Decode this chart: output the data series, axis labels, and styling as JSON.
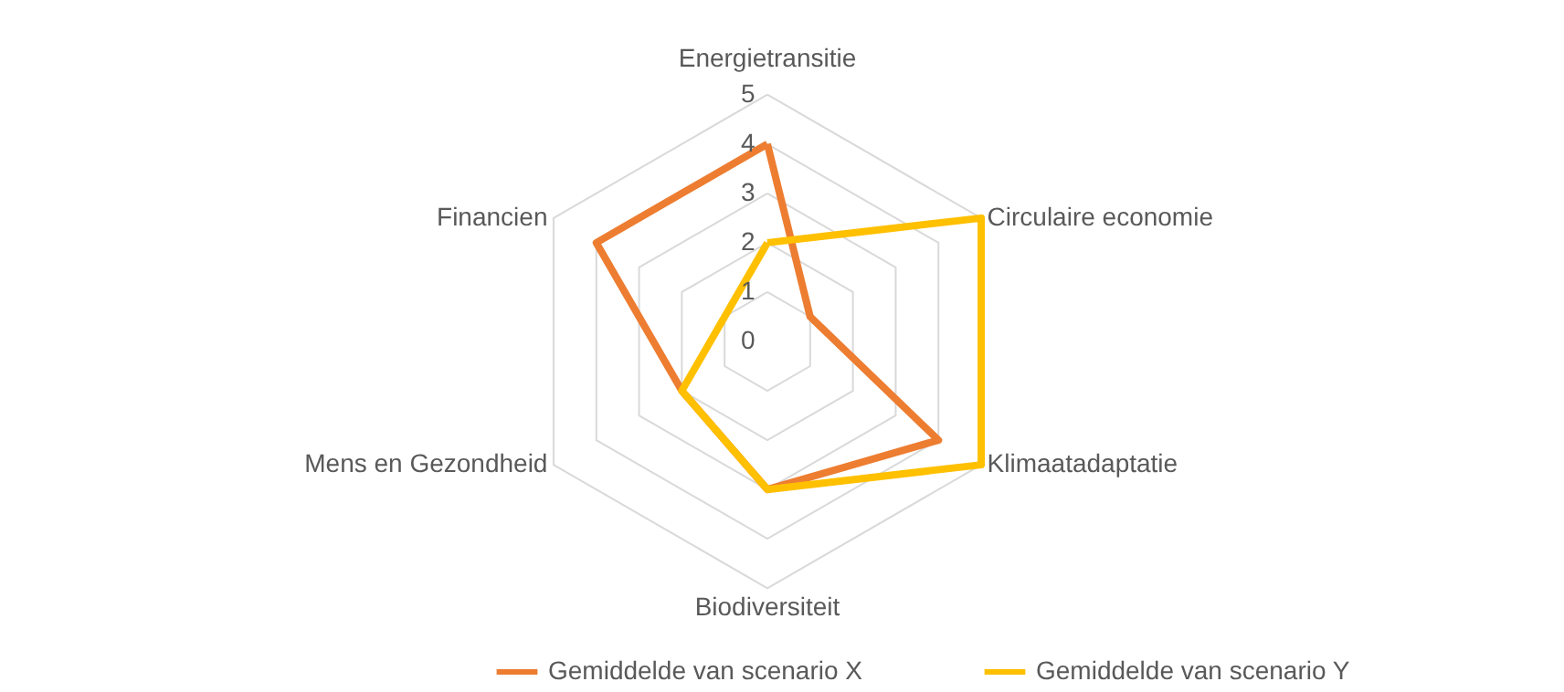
{
  "chart_data": {
    "type": "radar",
    "categories": [
      "Energietransitie",
      "Circulaire economie",
      "Klimaatadaptatie",
      "Biodiversiteit",
      "Mens en Gezondheid",
      "Financien"
    ],
    "series": [
      {
        "name": "Gemiddelde van scenario X",
        "color": "#ed7d31",
        "values": [
          4,
          1,
          4,
          3,
          2,
          4
        ]
      },
      {
        "name": "Gemiddelde van scenario Y",
        "color": "#ffc000",
        "values": [
          2,
          5,
          5,
          3,
          2,
          1
        ]
      }
    ],
    "ylim": [
      0,
      5
    ],
    "yticks": [
      0,
      1,
      2,
      3,
      4,
      5
    ],
    "grid": true,
    "legend": "bottom"
  }
}
